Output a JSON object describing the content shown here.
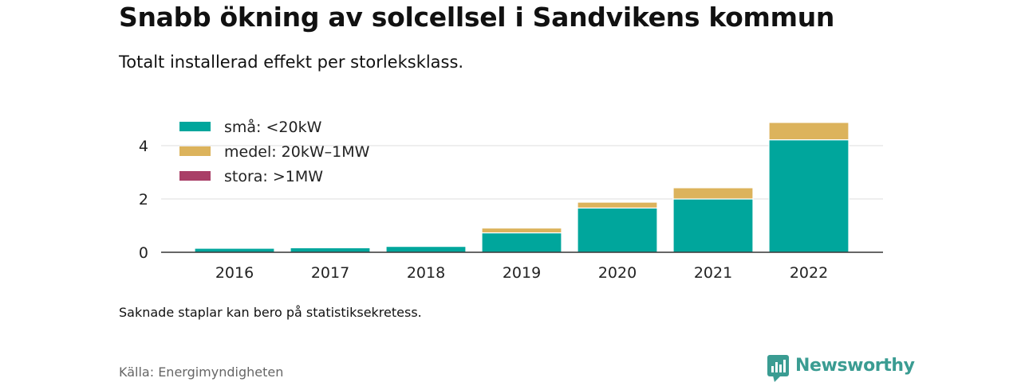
{
  "title": "Snabb ökning av solcellsel i Sandvikens kommun",
  "subtitle": "Totalt installerad effekt per storleksklass.",
  "note": "Saknade staplar kan bero på statistiksekretess.",
  "source": "Källa: Energimyndigheten",
  "brand": {
    "name": "Newsworthy",
    "logo_icon": "newsworthy-bar-chart-logo-icon",
    "color": "#3a9c92"
  },
  "chart_data": {
    "type": "bar",
    "stacked": true,
    "categories": [
      "2016",
      "2017",
      "2018",
      "2019",
      "2020",
      "2021",
      "2022"
    ],
    "series": [
      {
        "name": "små: <20kW",
        "color": "#00a69c",
        "values": [
          0.15,
          0.17,
          0.22,
          0.73,
          1.66,
          2.0,
          4.22
        ]
      },
      {
        "name": "medel: 20kW–1MW",
        "color": "#dcb35c",
        "values": [
          0.0,
          0.0,
          0.0,
          0.18,
          0.22,
          0.42,
          0.65
        ]
      },
      {
        "name": "stora: >1MW",
        "color": "#a93f67",
        "values": [
          0,
          0,
          0,
          0,
          0,
          0,
          0
        ]
      }
    ],
    "ylim": [
      0,
      5
    ],
    "yticks": [
      0,
      2,
      4
    ],
    "grid": true,
    "legend_position": "top-left",
    "xlabel": "",
    "ylabel": ""
  }
}
